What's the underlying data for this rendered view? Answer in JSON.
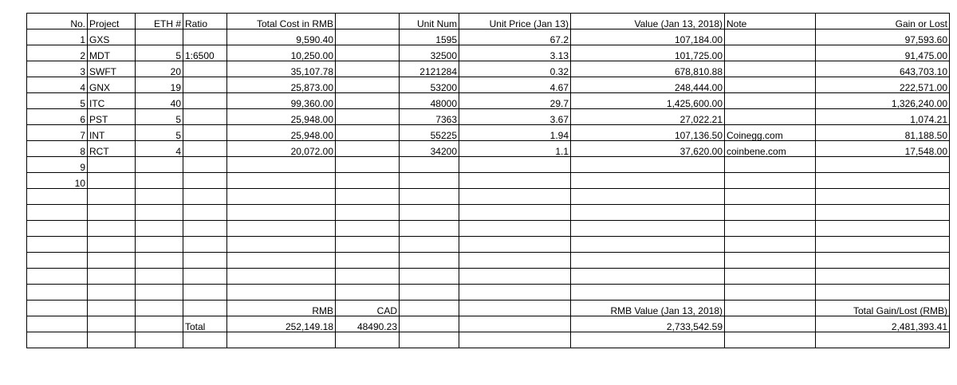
{
  "headers": [
    "No.",
    "Project",
    "ETH #",
    "Ratio",
    "Total Cost in RMB",
    "",
    "Unit Num",
    "Unit Price (Jan 13)",
    "Value (Jan 13, 2018)",
    "Note",
    "Gain or Lost"
  ],
  "rows": [
    [
      "1",
      "GXS",
      "",
      "",
      "9,590.40",
      "",
      "1595",
      "67.2",
      "107,184.00",
      "",
      "97,593.60"
    ],
    [
      "2",
      "MDT",
      "5",
      "1:6500",
      "10,250.00",
      "",
      "32500",
      "3.13",
      "101,725.00",
      "",
      "91,475.00"
    ],
    [
      "3",
      "SWFT",
      "20",
      "",
      "35,107.78",
      "",
      "2121284",
      "0.32",
      "678,810.88",
      "",
      "643,703.10"
    ],
    [
      "4",
      "GNX",
      "19",
      "",
      "25,873.00",
      "",
      "53200",
      "4.67",
      "248,444.00",
      "",
      "222,571.00"
    ],
    [
      "5",
      "ITC",
      "40",
      "",
      "99,360.00",
      "",
      "48000",
      "29.7",
      "1,425,600.00",
      "",
      "1,326,240.00"
    ],
    [
      "6",
      "PST",
      "5",
      "",
      "25,948.00",
      "",
      "7363",
      "3.67",
      "27,022.21",
      "",
      "1,074.21"
    ],
    [
      "7",
      "INT",
      "5",
      "",
      "25,948.00",
      "",
      "55225",
      "1.94",
      "107,136.50",
      "Coinegg.com",
      "81,188.50"
    ],
    [
      "8",
      "RCT",
      "4",
      "",
      "20,072.00",
      "",
      "34200",
      "1.1",
      "37,620.00",
      "coinbene.com",
      "17,548.00"
    ],
    [
      "9",
      "",
      "",
      "",
      "",
      "",
      "",
      "",
      "",
      "",
      ""
    ],
    [
      "10",
      "",
      "",
      "",
      "",
      "",
      "",
      "",
      "",
      "",
      ""
    ],
    [
      "",
      "",
      "",
      "",
      "",
      "",
      "",
      "",
      "",
      "",
      ""
    ],
    [
      "",
      "",
      "",
      "",
      "",
      "",
      "",
      "",
      "",
      "",
      ""
    ],
    [
      "",
      "",
      "",
      "",
      "",
      "",
      "",
      "",
      "",
      "",
      ""
    ],
    [
      "",
      "",
      "",
      "",
      "",
      "",
      "",
      "",
      "",
      "",
      ""
    ],
    [
      "",
      "",
      "",
      "",
      "",
      "",
      "",
      "",
      "",
      "",
      ""
    ],
    [
      "",
      "",
      "",
      "",
      "",
      "",
      "",
      "",
      "",
      "",
      ""
    ],
    [
      "",
      "",
      "",
      "",
      "",
      "",
      "",
      "",
      "",
      "",
      ""
    ],
    [
      "",
      "",
      "",
      "",
      "RMB",
      "CAD",
      "",
      "",
      "RMB Value (Jan 13, 2018)",
      "",
      "Total Gain/Lost (RMB)"
    ],
    [
      "",
      "",
      "",
      "Total",
      "252,149.18",
      "48490.23",
      "",
      "",
      "2,733,542.59",
      "",
      "2,481,393.41"
    ],
    [
      "",
      "",
      "",
      "",
      "",
      "",
      "",
      "",
      "",
      "",
      ""
    ]
  ]
}
